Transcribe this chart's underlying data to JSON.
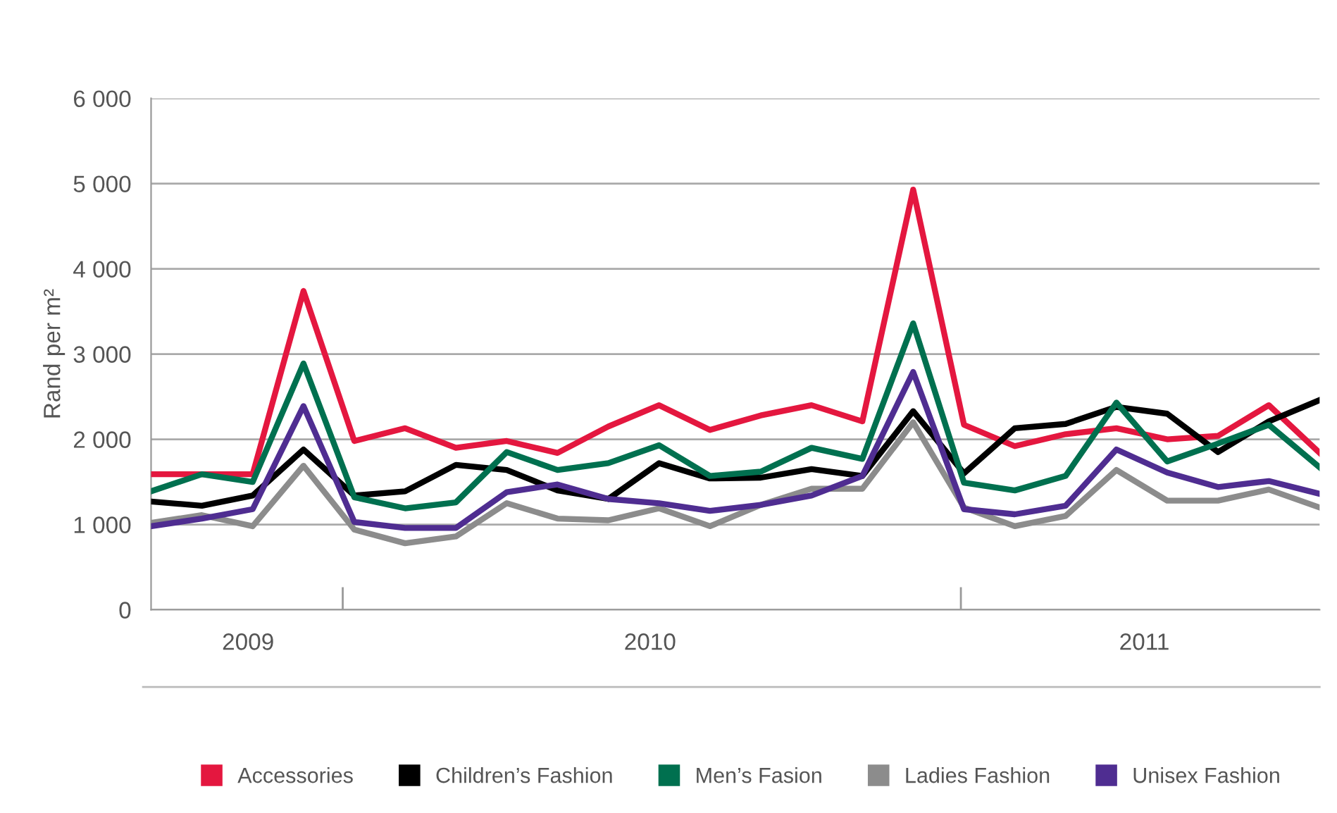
{
  "chart_data": {
    "type": "line",
    "ylabel": "Rand per m²",
    "categories": [
      null,
      null,
      null,
      null,
      null,
      null,
      null,
      null,
      null,
      null,
      null,
      null,
      null,
      null,
      null,
      null,
      null,
      null,
      null,
      null,
      null,
      null,
      null,
      null
    ],
    "annotations": [
      "2009",
      "2010",
      "2011"
    ],
    "ylim": [
      0,
      6000
    ],
    "yticks": [
      {
        "value": 0,
        "label": "0"
      },
      {
        "value": 1000,
        "label": "1 000"
      },
      {
        "value": 2000,
        "label": "2 000"
      },
      {
        "value": 3000,
        "label": "3 000"
      },
      {
        "value": 4000,
        "label": "4 000"
      },
      {
        "value": 5000,
        "label": "5 000"
      },
      {
        "value": 6000,
        "label": "6 000"
      }
    ],
    "grid": "y",
    "legend": "bottom",
    "marker": "none",
    "line_style": "solid",
    "series": [
      {
        "name": "Accessories",
        "color": "#e4173f",
        "values": [
          1590,
          1590,
          1590,
          3740,
          1980,
          2130,
          1900,
          1980,
          1840,
          2150,
          2400,
          2110,
          2280,
          2400,
          2210,
          4930,
          2170,
          1920,
          2060,
          2130,
          2000,
          2040,
          2400,
          1840
        ]
      },
      {
        "name": "Children’s Fashion",
        "color": "#000000",
        "values": [
          1270,
          1220,
          1340,
          1880,
          1340,
          1390,
          1700,
          1640,
          1400,
          1300,
          1720,
          1540,
          1550,
          1650,
          1570,
          2330,
          1600,
          2130,
          2180,
          2380,
          2300,
          1850,
          2210,
          2460
        ]
      },
      {
        "name": "Men’s Fasion",
        "color": "#00704f",
        "values": [
          1390,
          1590,
          1500,
          2890,
          1320,
          1190,
          1260,
          1850,
          1640,
          1720,
          1930,
          1570,
          1620,
          1900,
          1770,
          3360,
          1490,
          1400,
          1570,
          2430,
          1740,
          1950,
          2170,
          1670
        ]
      },
      {
        "name": "Ladies Fashion",
        "color": "#8c8c8c",
        "values": [
          1020,
          1110,
          980,
          1690,
          940,
          780,
          860,
          1250,
          1070,
          1050,
          1190,
          980,
          1230,
          1420,
          1420,
          2200,
          1200,
          980,
          1100,
          1640,
          1280,
          1280,
          1410,
          1200
        ]
      },
      {
        "name": "Unisex Fashion",
        "color": "#4f2d91",
        "values": [
          980,
          1070,
          1180,
          2390,
          1030,
          960,
          960,
          1380,
          1470,
          1300,
          1250,
          1160,
          1230,
          1340,
          1570,
          2790,
          1180,
          1120,
          1220,
          1880,
          1610,
          1440,
          1510,
          1360
        ]
      }
    ]
  }
}
